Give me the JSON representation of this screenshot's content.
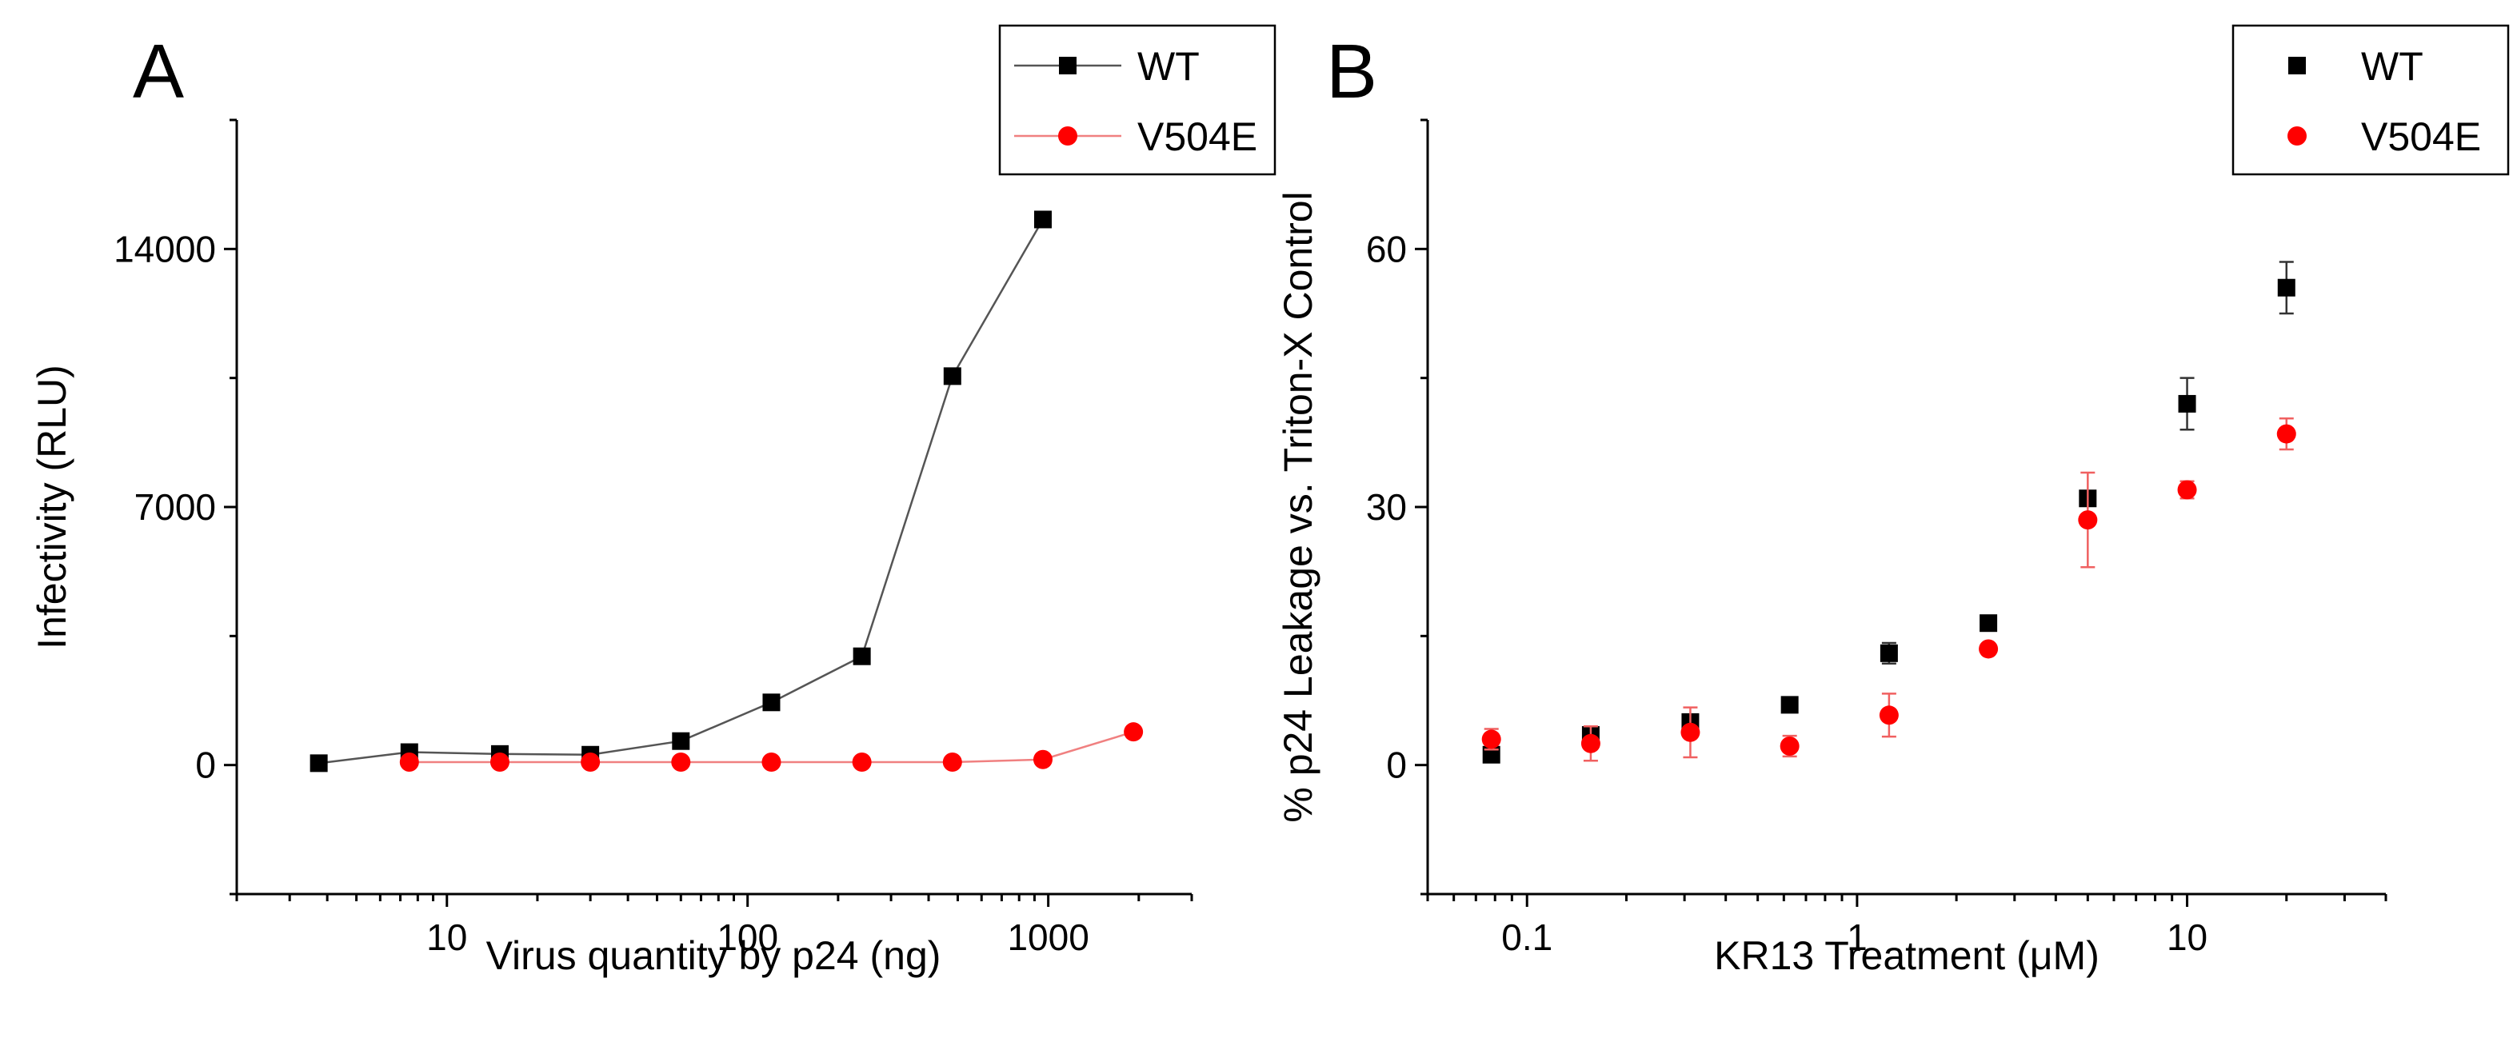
{
  "chart_data": [
    {
      "panel": "A",
      "type": "line",
      "title": "",
      "xlabel": "Virus quantity by p24 (ng)",
      "ylabel": "Infectivity (RLU)",
      "xscale": "log",
      "xlim": [
        2,
        3000
      ],
      "ylim": [
        -3500,
        17500
      ],
      "xticks": [
        10,
        100,
        1000
      ],
      "xtick_labels": [
        "10",
        "100",
        "1000"
      ],
      "yticks": [
        0,
        7000,
        14000
      ],
      "ytick_labels": [
        "0",
        "7000",
        "14000"
      ],
      "legend_position": "top-right",
      "series": [
        {
          "name": "WT",
          "color": "#000000",
          "line_color": "#555555",
          "marker": "square",
          "x": [
            3.75,
            7.5,
            15,
            30,
            60,
            120,
            240,
            480,
            960
          ],
          "y": [
            50,
            350,
            300,
            280,
            650,
            1700,
            2950,
            10550,
            14800
          ]
        },
        {
          "name": "V504E",
          "color": "#ff0000",
          "line_color": "#f08080",
          "marker": "circle",
          "x": [
            7.5,
            15,
            30,
            60,
            120,
            240,
            480,
            960,
            1920
          ],
          "y": [
            80,
            80,
            80,
            80,
            80,
            80,
            80,
            150,
            900
          ]
        }
      ]
    },
    {
      "panel": "B",
      "type": "scatter",
      "title": "",
      "xlabel": "KR13 Treatment (μM)",
      "ylabel": "% p24 Leakage vs. Triton-X Control",
      "xscale": "log",
      "xlim": [
        0.05,
        40
      ],
      "ylim": [
        -15,
        75
      ],
      "xticks": [
        0.1,
        1,
        10
      ],
      "xtick_labels": [
        "0.1",
        "1",
        "10"
      ],
      "yticks": [
        0,
        30,
        60
      ],
      "ytick_labels": [
        "0",
        "30",
        "60"
      ],
      "legend_position": "top-right",
      "series": [
        {
          "name": "WT",
          "color": "#000000",
          "marker": "square",
          "x": [
            0.078,
            0.156,
            0.3125,
            0.625,
            1.25,
            2.5,
            5,
            10,
            20
          ],
          "y": [
            1.2,
            3.5,
            5.0,
            7.0,
            13.0,
            16.5,
            31.0,
            42.0,
            55.5
          ],
          "err": [
            0.5,
            0.5,
            0.8,
            0.5,
            1.2,
            0.5,
            0.8,
            3.0,
            3.0
          ]
        },
        {
          "name": "V504E",
          "color": "#ff0000",
          "marker": "circle",
          "x": [
            0.078,
            0.156,
            0.3125,
            0.625,
            1.25,
            2.5,
            5,
            10,
            20
          ],
          "y": [
            3.0,
            2.5,
            3.8,
            2.2,
            5.8,
            13.5,
            28.5,
            32.0,
            38.5
          ],
          "err": [
            1.2,
            2.0,
            2.9,
            1.2,
            2.5,
            0.5,
            5.5,
            1.0,
            1.8
          ]
        }
      ]
    }
  ]
}
